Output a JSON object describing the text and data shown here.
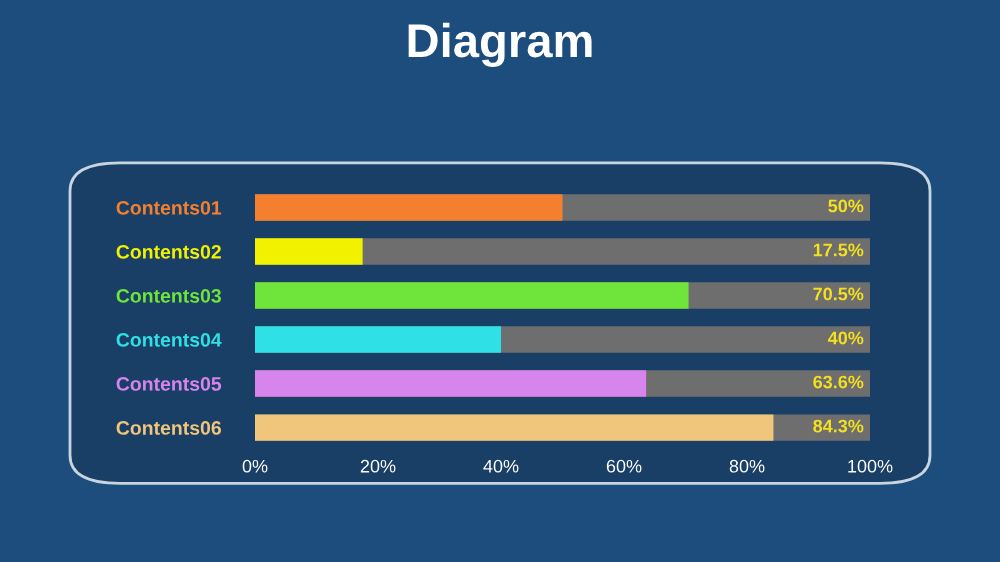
{
  "chart_data": {
    "type": "bar",
    "orientation": "horizontal",
    "title": "Diagram",
    "categories": [
      "Contents01",
      "Contents02",
      "Contents03",
      "Contents04",
      "Contents05",
      "Contents06"
    ],
    "values": [
      50,
      17.5,
      70.5,
      40,
      63.6,
      84.3
    ],
    "colors": [
      "#f4802f",
      "#f2f200",
      "#6fe43a",
      "#2fe0e6",
      "#d784ec",
      "#f0c67c"
    ],
    "value_labels": [
      "50%",
      "17.5%",
      "70.5%",
      "40%",
      "63.6%",
      "84.3%"
    ],
    "xlim": [
      0,
      100
    ],
    "xticks": [
      {
        "value": 0,
        "label": "0%"
      },
      {
        "value": 20,
        "label": "20%"
      },
      {
        "value": 40,
        "label": "40%"
      },
      {
        "value": 60,
        "label": "60%"
      },
      {
        "value": 80,
        "label": "80%"
      },
      {
        "value": 100,
        "label": "100%"
      }
    ],
    "grid": false,
    "legend": false
  }
}
